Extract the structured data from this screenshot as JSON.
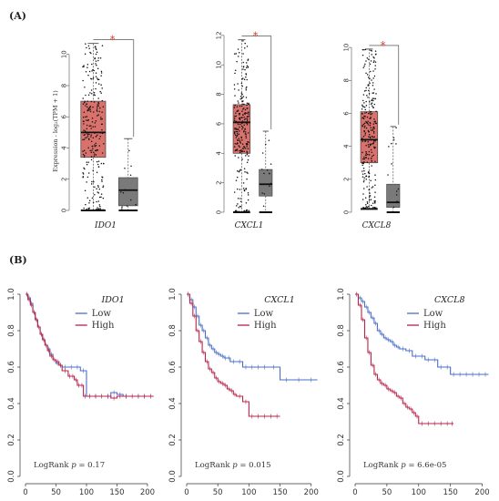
{
  "labels": {
    "panel_a": "(A)",
    "panel_b": "(B)"
  },
  "box_ylabel": "Expression - log₂(TPM + 1)",
  "colors": {
    "tumor": "#d9726d",
    "normal": "#7a7a7a",
    "low": "#4a6fc6",
    "high": "#b5244a",
    "star": "#e0452b"
  },
  "chart_data": [
    {
      "type": "box",
      "gene": "IDO1",
      "significance": "*",
      "ylim": [
        0,
        11.5
      ],
      "yticks": [
        "0",
        "2",
        "4",
        "6",
        "8",
        "10"
      ],
      "series": [
        {
          "group": "tumor",
          "min": 0,
          "q1": 3.4,
          "median": 5.0,
          "q3": 7.0,
          "max": 10.7
        },
        {
          "group": "normal",
          "min": 0,
          "q1": 0.3,
          "median": 1.3,
          "q3": 2.1,
          "max": 4.6
        }
      ]
    },
    {
      "type": "box",
      "gene": "CXCL1",
      "significance": "*",
      "ylim": [
        0,
        12.3
      ],
      "yticks": [
        "0",
        "2",
        "4",
        "6",
        "8",
        "10",
        "12"
      ],
      "series": [
        {
          "group": "tumor",
          "min": 0,
          "q1": 4.0,
          "median": 6.1,
          "q3": 7.3,
          "max": 11.7
        },
        {
          "group": "normal",
          "min": 0,
          "q1": 1.1,
          "median": 1.9,
          "q3": 2.9,
          "max": 5.5
        }
      ]
    },
    {
      "type": "box",
      "gene": "CXCL8",
      "significance": "*",
      "ylim": [
        0,
        11
      ],
      "yticks": [
        "0",
        "2",
        "4",
        "6",
        "8",
        "10"
      ],
      "series": [
        {
          "group": "tumor",
          "min": 0.2,
          "q1": 3.0,
          "median": 4.4,
          "q3": 6.1,
          "max": 9.9
        },
        {
          "group": "normal",
          "min": 0,
          "q1": 0.3,
          "median": 0.6,
          "q3": 1.7,
          "max": 5.2
        }
      ]
    },
    {
      "type": "line",
      "title": "IDO1",
      "legend": [
        "Low",
        "High"
      ],
      "pvalue_prefix": "LogRank ",
      "pvalue_p": "p",
      "pvalue_rest": " = 0.17",
      "xlim": [
        0,
        215
      ],
      "ylim": [
        0,
        1.0
      ],
      "xticks": [
        "0",
        "50",
        "100",
        "150",
        "200"
      ],
      "yticks": [
        "0.0",
        "0.2",
        "0.4",
        "0.6",
        "0.8",
        "1.0"
      ],
      "series": [
        {
          "name": "Low",
          "x": [
            0,
            4,
            8,
            12,
            16,
            20,
            24,
            28,
            32,
            36,
            40,
            45,
            50,
            55,
            60,
            70,
            80,
            90,
            100,
            110,
            120,
            130,
            140,
            150,
            160,
            170,
            180,
            190,
            200,
            210
          ],
          "y": [
            1.0,
            0.98,
            0.95,
            0.9,
            0.86,
            0.82,
            0.78,
            0.75,
            0.72,
            0.7,
            0.67,
            0.64,
            0.62,
            0.61,
            0.6,
            0.6,
            0.6,
            0.58,
            0.44,
            0.44,
            0.44,
            0.44,
            0.46,
            0.45,
            0.44,
            0.44,
            0.44,
            0.44,
            0.44,
            0.44
          ]
        },
        {
          "name": "High",
          "x": [
            0,
            4,
            8,
            12,
            16,
            20,
            24,
            28,
            32,
            36,
            40,
            45,
            50,
            55,
            60,
            70,
            75,
            80,
            85,
            90,
            95,
            100,
            110,
            120,
            130,
            140,
            150,
            160,
            170,
            180,
            190,
            200,
            210
          ],
          "y": [
            1.0,
            0.97,
            0.94,
            0.9,
            0.86,
            0.82,
            0.78,
            0.75,
            0.72,
            0.69,
            0.66,
            0.64,
            0.63,
            0.61,
            0.58,
            0.55,
            0.55,
            0.53,
            0.5,
            0.5,
            0.44,
            0.44,
            0.44,
            0.44,
            0.44,
            0.43,
            0.44,
            0.44,
            0.44,
            0.44,
            0.44,
            0.44,
            0.44
          ]
        }
      ]
    },
    {
      "type": "line",
      "title": "CXCL1",
      "legend": [
        "Low",
        "High"
      ],
      "pvalue_prefix": "LogRank ",
      "pvalue_p": "p",
      "pvalue_rest": " = 0.015",
      "xlim": [
        0,
        215
      ],
      "ylim": [
        0,
        1.0
      ],
      "xticks": [
        "0",
        "50",
        "100",
        "150",
        "200"
      ],
      "yticks": [
        "0.0",
        "0.2",
        "0.4",
        "0.6",
        "0.8",
        "1.0"
      ],
      "series": [
        {
          "name": "Low",
          "x": [
            0,
            5,
            10,
            15,
            20,
            25,
            30,
            35,
            40,
            45,
            50,
            55,
            60,
            65,
            70,
            80,
            90,
            100,
            110,
            120,
            130,
            150,
            170,
            190,
            210
          ],
          "y": [
            1.0,
            0.97,
            0.93,
            0.88,
            0.83,
            0.8,
            0.76,
            0.72,
            0.7,
            0.68,
            0.67,
            0.66,
            0.65,
            0.65,
            0.63,
            0.63,
            0.6,
            0.6,
            0.6,
            0.6,
            0.6,
            0.53,
            0.53,
            0.53,
            0.53
          ]
        },
        {
          "name": "High",
          "x": [
            0,
            5,
            10,
            15,
            20,
            25,
            30,
            35,
            40,
            45,
            50,
            55,
            60,
            65,
            70,
            75,
            80,
            90,
            100,
            110,
            120,
            130,
            140,
            150
          ],
          "y": [
            1.0,
            0.95,
            0.88,
            0.8,
            0.74,
            0.68,
            0.63,
            0.59,
            0.57,
            0.54,
            0.52,
            0.51,
            0.5,
            0.48,
            0.47,
            0.45,
            0.44,
            0.41,
            0.33,
            0.33,
            0.33,
            0.33,
            0.33,
            0.33
          ]
        }
      ]
    },
    {
      "type": "line",
      "title": "CXCL8",
      "legend": [
        "Low",
        "High"
      ],
      "pvalue_prefix": "LogRank ",
      "pvalue_p": "p",
      "pvalue_rest": " = 6.6e-05",
      "xlim": [
        0,
        215
      ],
      "ylim": [
        0,
        1.0
      ],
      "xticks": [
        "0",
        "50",
        "100",
        "150",
        "200"
      ],
      "yticks": [
        "0.0",
        "0.2",
        "0.4",
        "0.6",
        "0.8",
        "1.0"
      ],
      "series": [
        {
          "name": "Low",
          "x": [
            0,
            5,
            10,
            15,
            20,
            25,
            30,
            35,
            40,
            45,
            50,
            55,
            60,
            65,
            70,
            80,
            90,
            100,
            110,
            120,
            130,
            140,
            150,
            160,
            170,
            180,
            190,
            200,
            210
          ],
          "y": [
            1.0,
            0.98,
            0.96,
            0.93,
            0.9,
            0.87,
            0.84,
            0.8,
            0.78,
            0.76,
            0.75,
            0.74,
            0.72,
            0.71,
            0.7,
            0.69,
            0.66,
            0.66,
            0.64,
            0.64,
            0.6,
            0.6,
            0.56,
            0.56,
            0.56,
            0.56,
            0.56,
            0.56,
            0.56
          ]
        },
        {
          "name": "High",
          "x": [
            0,
            5,
            10,
            15,
            20,
            25,
            30,
            35,
            40,
            45,
            50,
            55,
            60,
            65,
            70,
            75,
            80,
            85,
            90,
            95,
            100,
            110,
            120,
            130,
            140,
            150,
            155
          ],
          "y": [
            1.0,
            0.94,
            0.86,
            0.76,
            0.68,
            0.61,
            0.56,
            0.53,
            0.51,
            0.5,
            0.48,
            0.47,
            0.46,
            0.44,
            0.43,
            0.4,
            0.38,
            0.37,
            0.35,
            0.33,
            0.29,
            0.29,
            0.29,
            0.29,
            0.29,
            0.29,
            0.29
          ]
        }
      ]
    }
  ]
}
